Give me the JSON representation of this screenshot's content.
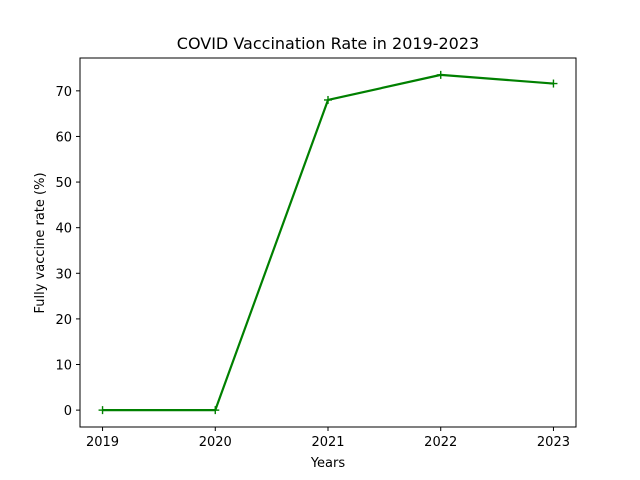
{
  "chart_data": {
    "type": "line",
    "title": "COVID Vaccination Rate in 2019-2023",
    "xlabel": "Years",
    "ylabel": "Fully vaccine rate (%)",
    "x": [
      2019,
      2020,
      2021,
      2022,
      2023
    ],
    "xticks": [
      "2019",
      "2020",
      "2021",
      "2022",
      "2023"
    ],
    "yticks": [
      "0",
      "10",
      "20",
      "30",
      "40",
      "50",
      "60",
      "70"
    ],
    "ytick_values": [
      0,
      10,
      20,
      30,
      40,
      50,
      60,
      70
    ],
    "xlim": [
      2018.8,
      2023.2
    ],
    "ylim": [
      -3.7,
      77.2
    ],
    "series": [
      {
        "values": [
          0,
          0,
          68,
          73.5,
          71.6
        ],
        "color": "#008000",
        "marker": "plus"
      }
    ],
    "grid": false,
    "legend": "none"
  }
}
